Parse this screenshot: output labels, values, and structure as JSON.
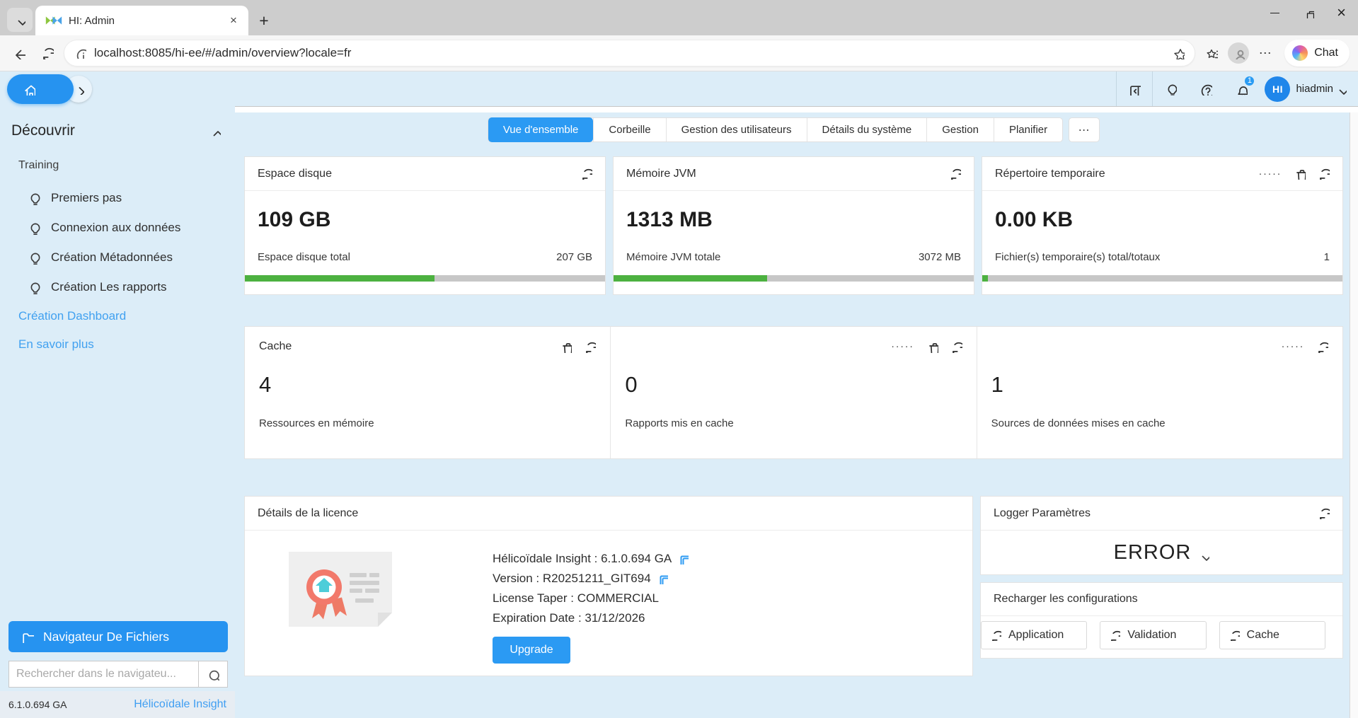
{
  "browser": {
    "tab_title": "HI: Admin",
    "url": "localhost:8085/hi-ee/#/admin/overview?locale=fr",
    "chat_label": "Chat"
  },
  "header": {
    "user_initials": "HI",
    "user_name": "hiadmin",
    "notification_count": "1"
  },
  "sidebar": {
    "section_title": "Découvrir",
    "group_label": "Training",
    "items": [
      {
        "label": "Premiers pas"
      },
      {
        "label": "Connexion aux données"
      },
      {
        "label": "Création Métadonnées"
      },
      {
        "label": "Création Les rapports"
      }
    ],
    "links": [
      {
        "label": "Création Dashboard"
      },
      {
        "label": "En savoir plus"
      }
    ],
    "file_browser_label": "Navigateur De Fichiers",
    "search_placeholder": "Rechercher dans le navigateu...",
    "version": "6.1.0.694 GA",
    "brand": "Hélicoïdale Insight"
  },
  "tabs": {
    "items": [
      {
        "label": "Vue d'ensemble",
        "active": true
      },
      {
        "label": "Corbeille",
        "active": false
      },
      {
        "label": "Gestion des utilisateurs",
        "active": false
      },
      {
        "label": "Détails du système",
        "active": false
      },
      {
        "label": "Gestion",
        "active": false
      },
      {
        "label": "Planifier",
        "active": false
      }
    ],
    "more": "⋯"
  },
  "cards": {
    "disk": {
      "title": "Espace disque",
      "value": "109 GB",
      "label": "Espace disque total",
      "total": "207 GB",
      "percent": 52.7
    },
    "jvm": {
      "title": "Mémoire JVM",
      "value": "1313 MB",
      "label": "Mémoire JVM totale",
      "total": "3072 MB",
      "percent": 42.7
    },
    "temp": {
      "title": "Répertoire temporaire",
      "value": "0.00 KB",
      "label": "Fichier(s) temporaire(s) total/totaux",
      "total": "1",
      "percent": 1.6
    },
    "cache": {
      "title": "Cache",
      "value": "4",
      "label": "Ressources en mémoire"
    },
    "reports": {
      "value": "0",
      "label": "Rapports mis en cache"
    },
    "datasources": {
      "value": "1",
      "label": "Sources de données mises en cache"
    }
  },
  "license": {
    "title": "Détails de la licence",
    "lines": [
      {
        "text": "Hélicoïdale Insight : 6.1.0.694 GA",
        "copyable": true
      },
      {
        "text": "Version : R20251211_GIT694",
        "copyable": true
      },
      {
        "text": "License Taper : COMMERCIAL",
        "copyable": false
      },
      {
        "text": "Expiration Date : 31/12/2026",
        "copyable": false
      }
    ],
    "upgrade_label": "Upgrade"
  },
  "logger": {
    "title": "Logger Paramètres",
    "level": "ERROR"
  },
  "reload": {
    "title": "Recharger les configurations",
    "buttons": [
      "Application",
      "Validation",
      "Cache"
    ]
  },
  "icons": {
    "close": "×",
    "new_tab": "+",
    "browser_more": "⋯",
    "more_dots": "·····"
  },
  "colors": {
    "accent_blue": "#2b9af3",
    "progress_green": "#4cb140",
    "panel_blue": "#dcedf8",
    "link_blue": "#41a1f0"
  }
}
